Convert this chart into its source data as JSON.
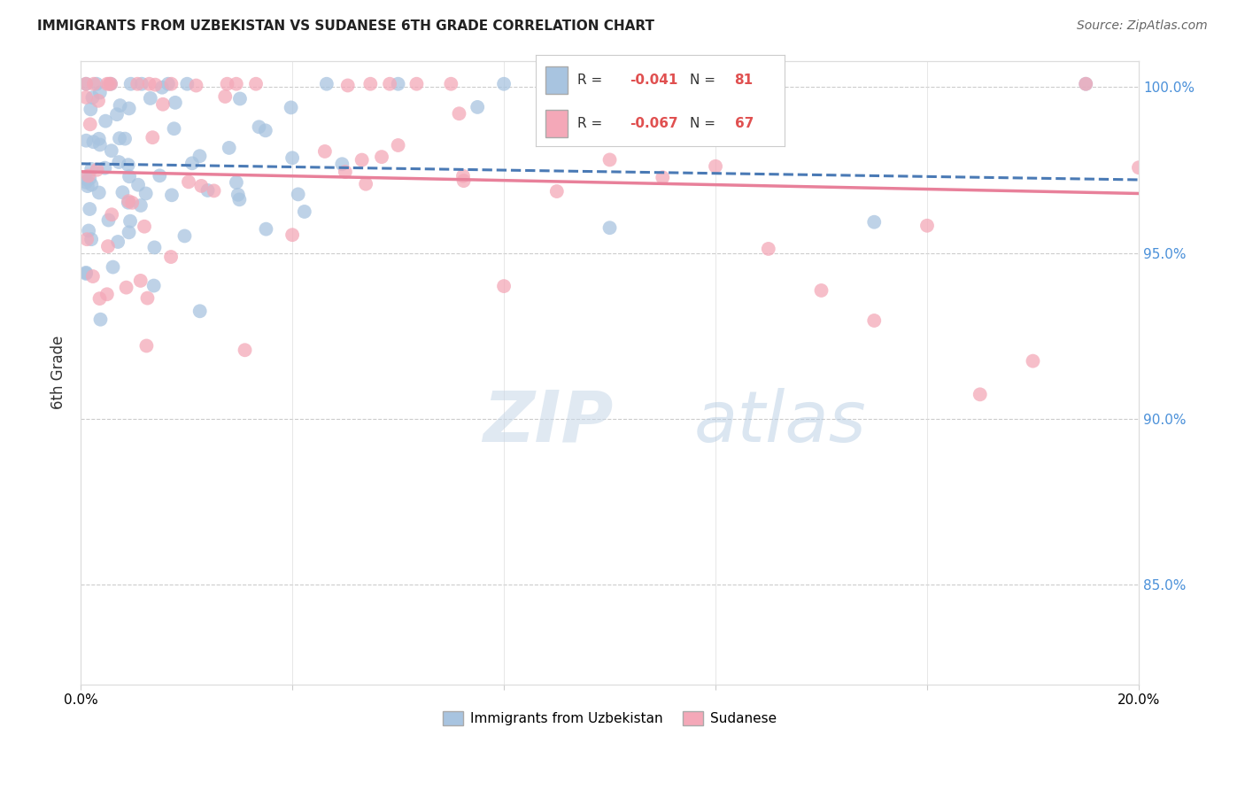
{
  "title": "IMMIGRANTS FROM UZBEKISTAN VS SUDANESE 6TH GRADE CORRELATION CHART",
  "source": "Source: ZipAtlas.com",
  "ylabel": "6th Grade",
  "xlim": [
    0.0,
    0.2
  ],
  "ylim": [
    0.82,
    1.008
  ],
  "yticks": [
    0.85,
    0.9,
    0.95,
    1.0
  ],
  "ytick_labels": [
    "85.0%",
    "90.0%",
    "95.0%",
    "100.0%"
  ],
  "xticks": [
    0.0,
    0.04,
    0.08,
    0.12,
    0.16,
    0.2
  ],
  "xtick_labels": [
    "0.0%",
    "",
    "",
    "",
    "",
    "20.0%"
  ],
  "uzbekistan_R": -0.041,
  "uzbekistan_N": 81,
  "sudanese_R": -0.067,
  "sudanese_N": 67,
  "uzbekistan_color": "#a8c4e0",
  "sudanese_color": "#f4a8b8",
  "uzbekistan_line_color": "#4a7ab5",
  "sudanese_line_color": "#e8809a",
  "background_color": "#ffffff",
  "watermark_zip_color": "#c8d8e8",
  "watermark_atlas_color": "#b8c8d8"
}
